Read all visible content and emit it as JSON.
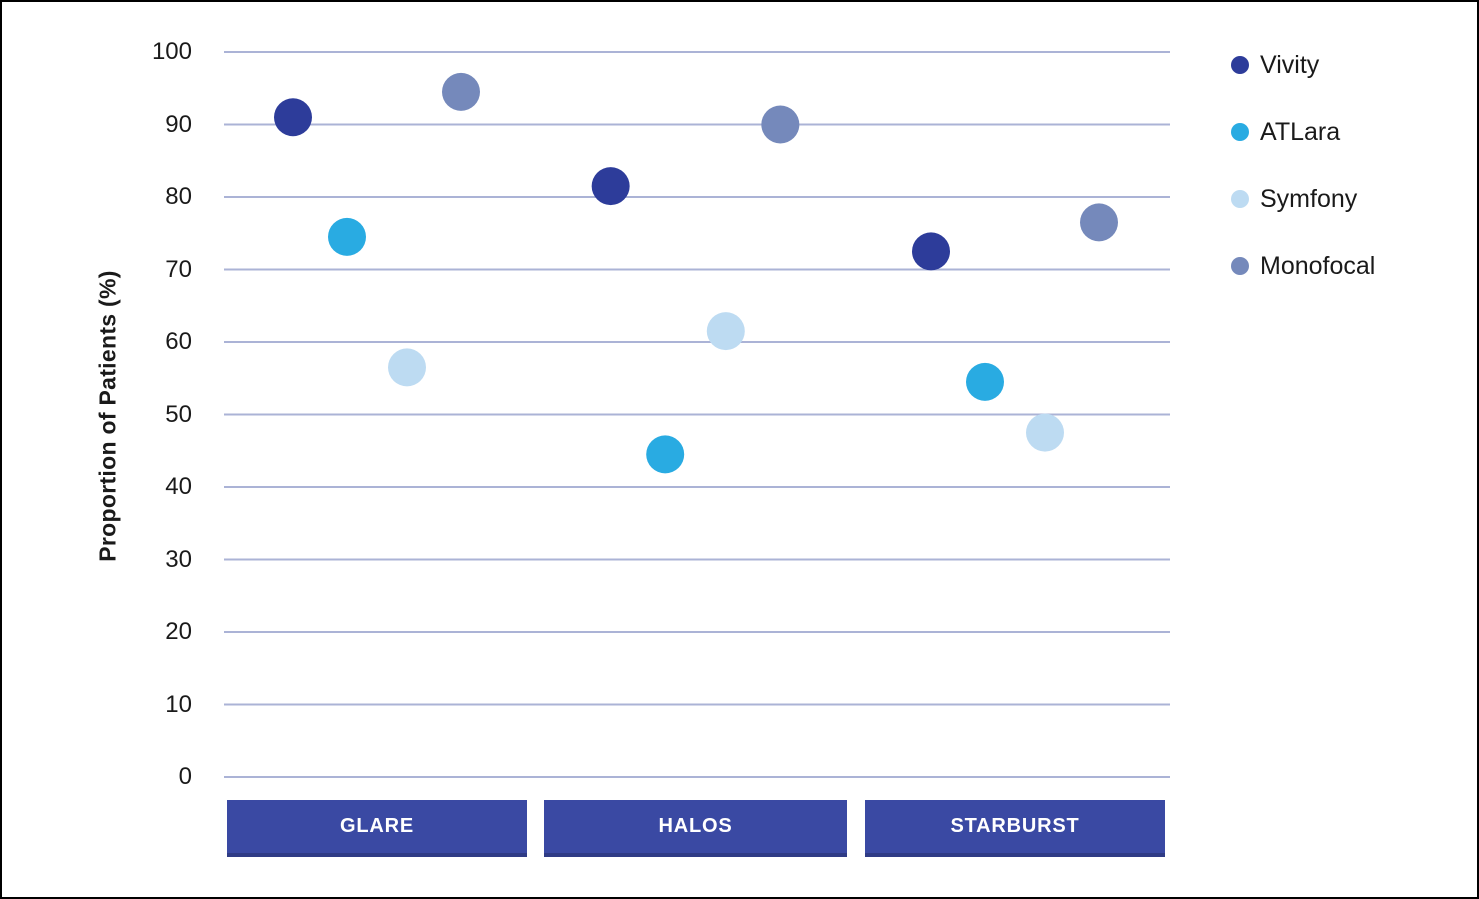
{
  "chart_data": {
    "type": "scatter",
    "title": "",
    "xlabel": "",
    "ylabel": "Proportion of Patients (%)",
    "categories": [
      "GLARE",
      "HALOS",
      "STARBURST"
    ],
    "series": [
      {
        "name": "Vivity",
        "color": "#2D3C9A",
        "values": [
          91,
          81.5,
          72.5
        ]
      },
      {
        "name": "ATLara",
        "color": "#29ABE2",
        "values": [
          74.5,
          44.5,
          54.5
        ]
      },
      {
        "name": "Symfony",
        "color": "#BDDBF2",
        "values": [
          56.5,
          61.5,
          47.5
        ]
      },
      {
        "name": "Monofocal",
        "color": "#7589BB",
        "values": [
          94.5,
          90,
          76.5
        ]
      }
    ],
    "ylim": [
      0,
      100
    ],
    "yticks": [
      0,
      10,
      20,
      30,
      40,
      50,
      60,
      70,
      80,
      90,
      100
    ],
    "grid": true,
    "legend_position": "right",
    "colors": {
      "gridline": "#ABB3D6",
      "category_band": "#3A49A3",
      "category_text": "#FFFFFF",
      "axis_text": "#1A1A1A",
      "background": "#FFFFFF"
    }
  }
}
